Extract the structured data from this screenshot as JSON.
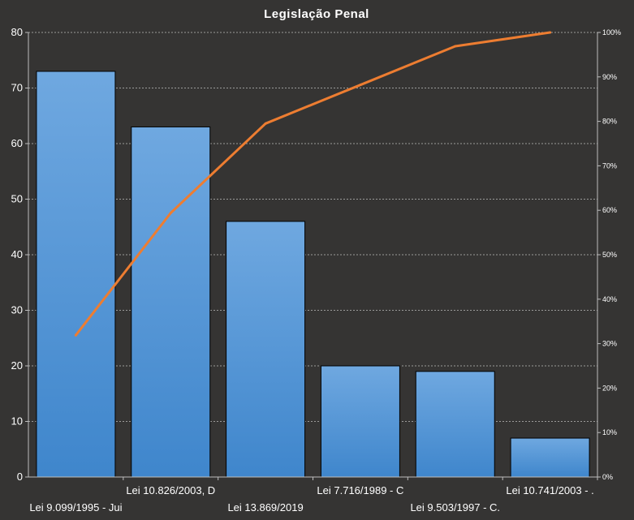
{
  "chart_data": {
    "type": "bar",
    "title": "Legislação Penal",
    "categories": [
      "Lei 9.099/1995 - Jui",
      "Lei 10.826/2003, D",
      "Lei 13.869/2019",
      "Lei 7.716/1989 - C",
      "Lei 9.503/1997 - C.",
      "Lei 10.741/2003 - ."
    ],
    "series": [
      {
        "type": "bar",
        "values": [
          73,
          63,
          46,
          20,
          19,
          7
        ]
      },
      {
        "type": "line",
        "axis": "secondary",
        "values": [
          0.319,
          0.594,
          0.795,
          0.882,
          0.969,
          1.0
        ]
      }
    ],
    "ylim": [
      0,
      80
    ],
    "yticks": [
      "0",
      "10",
      "20",
      "30",
      "40",
      "50",
      "60",
      "70",
      "80"
    ],
    "y2lim": [
      0,
      1
    ],
    "y2ticks": [
      "0%",
      "10%",
      "20%",
      "30%",
      "40%",
      "50%",
      "60%",
      "70%",
      "80%",
      "90%",
      "100%"
    ],
    "grid": true,
    "colors": {
      "bar": "#4a8fd4",
      "bar_top": "#6fa8e0",
      "line": "#ed7d31",
      "grid": "#bdbdbd",
      "background": "#353433"
    }
  }
}
